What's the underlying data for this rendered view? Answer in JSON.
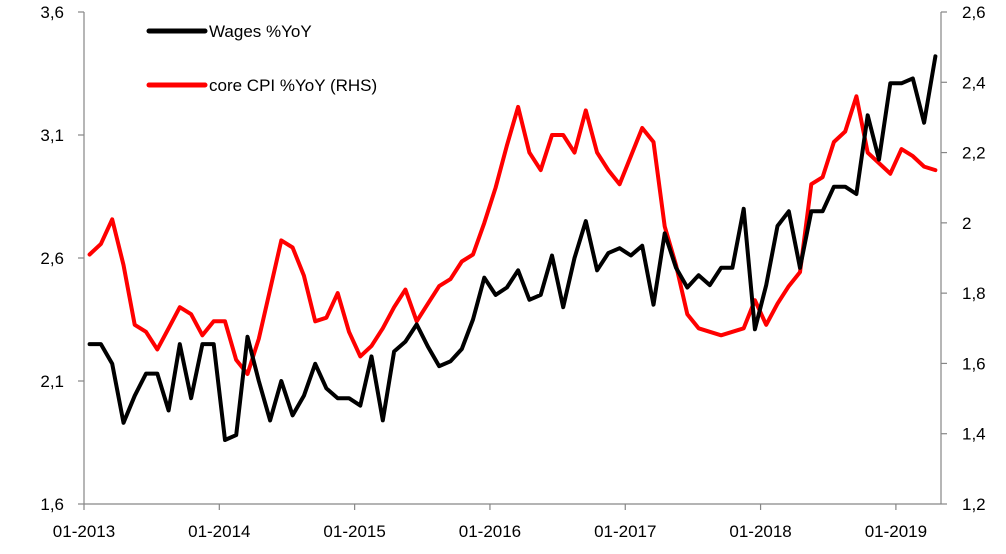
{
  "chart_data": {
    "type": "line",
    "x_labels": [
      "01-2013",
      "01-2014",
      "01-2015",
      "01-2016",
      "01-2017",
      "01-2018",
      "01-2019"
    ],
    "left_axis": {
      "ticks": [
        "1,6",
        "2,1",
        "2,6",
        "3,1",
        "3,6"
      ],
      "ylim": [
        1.6,
        3.6
      ]
    },
    "right_axis": {
      "ticks": [
        "1,2",
        "1,4",
        "1,6",
        "1,8",
        "2",
        "2,2",
        "2,4",
        "2,6"
      ],
      "ylim": [
        1.2,
        2.6
      ]
    },
    "x_range": [
      "2013-01",
      "2019-02"
    ],
    "legend_position": "top-left",
    "series": [
      {
        "name": "Wages %YoY",
        "axis": "left",
        "color": "#000000",
        "values": [
          2.25,
          2.25,
          2.17,
          1.93,
          2.04,
          2.13,
          2.13,
          1.98,
          2.25,
          2.03,
          2.25,
          2.25,
          1.86,
          1.88,
          2.28,
          2.1,
          1.94,
          2.1,
          1.96,
          2.04,
          2.17,
          2.07,
          2.03,
          2.03,
          2.0,
          2.2,
          1.94,
          2.22,
          2.26,
          2.33,
          2.24,
          2.16,
          2.18,
          2.23,
          2.35,
          2.52,
          2.45,
          2.48,
          2.55,
          2.43,
          2.45,
          2.61,
          2.4,
          2.6,
          2.75,
          2.55,
          2.62,
          2.64,
          2.61,
          2.65,
          2.41,
          2.7,
          2.56,
          2.48,
          2.53,
          2.49,
          2.56,
          2.56,
          2.8,
          2.31,
          2.49,
          2.73,
          2.79,
          2.56,
          2.79,
          2.79,
          2.89,
          2.89,
          2.86,
          3.18,
          3.0,
          3.31,
          3.31,
          3.33,
          3.15,
          3.42
        ]
      },
      {
        "name": "core CPI %YoY (RHS)",
        "axis": "right",
        "color": "#ff0000",
        "values": [
          1.91,
          1.94,
          2.01,
          1.88,
          1.71,
          1.69,
          1.64,
          1.7,
          1.76,
          1.74,
          1.68,
          1.72,
          1.72,
          1.61,
          1.57,
          1.67,
          1.81,
          1.95,
          1.93,
          1.85,
          1.72,
          1.73,
          1.8,
          1.69,
          1.62,
          1.65,
          1.7,
          1.76,
          1.81,
          1.72,
          1.77,
          1.82,
          1.84,
          1.89,
          1.91,
          2.0,
          2.1,
          2.22,
          2.33,
          2.2,
          2.15,
          2.25,
          2.25,
          2.2,
          2.32,
          2.2,
          2.15,
          2.11,
          2.19,
          2.27,
          2.23,
          1.99,
          1.88,
          1.74,
          1.7,
          1.69,
          1.68,
          1.69,
          1.7,
          1.78,
          1.71,
          1.77,
          1.82,
          1.86,
          2.11,
          2.13,
          2.23,
          2.26,
          2.36,
          2.2,
          2.17,
          2.14,
          2.21,
          2.19,
          2.16,
          2.15
        ]
      }
    ]
  }
}
